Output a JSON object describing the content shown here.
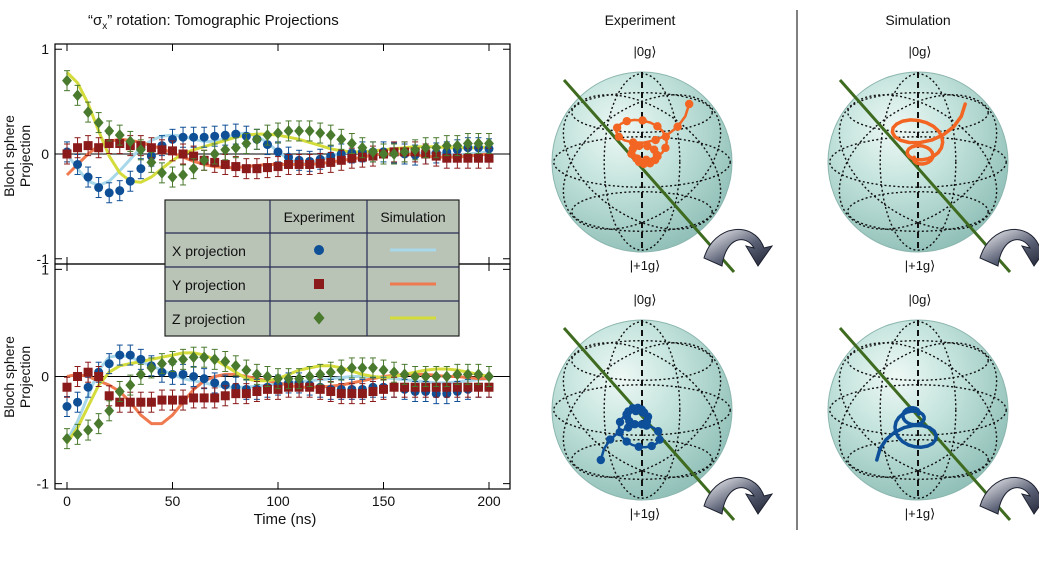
{
  "figure_title": "“σx” rotation: Tomographic Projections",
  "chart_data": [
    {
      "type": "line",
      "panel": "top",
      "ylabel": "Bloch sphere Projection",
      "ylim": [
        -1.05,
        1.05
      ],
      "xlim": [
        0,
        205
      ],
      "yticks": [
        "1",
        "0",
        "-1"
      ],
      "x": [
        0,
        5,
        10,
        15,
        20,
        25,
        30,
        35,
        40,
        45,
        50,
        55,
        60,
        65,
        70,
        75,
        80,
        85,
        90,
        95,
        100,
        105,
        110,
        115,
        120,
        125,
        130,
        135,
        140,
        145,
        150,
        155,
        160,
        165,
        170,
        175,
        180,
        185,
        190,
        195,
        200
      ],
      "series": [
        {
          "name": "X projection",
          "marker": "circle",
          "color": "#0f4f96",
          "fit_color": "#a8d8ea",
          "values": [
            0.02,
            -0.1,
            -0.22,
            -0.32,
            -0.37,
            -0.35,
            -0.26,
            -0.14,
            -0.02,
            0.08,
            0.14,
            0.16,
            0.16,
            0.16,
            0.17,
            0.18,
            0.19,
            0.17,
            0.14,
            0.09,
            0.02,
            -0.03,
            -0.06,
            -0.07,
            -0.05,
            -0.02,
            0.0,
            0.01,
            0.02,
            0.02,
            0.02,
            0.01,
            0.0,
            -0.01,
            0.0,
            0.01,
            0.02,
            0.04,
            0.06,
            0.06,
            0.05
          ],
          "fit": [
            0.0,
            -0.14,
            -0.26,
            -0.3,
            -0.26,
            -0.16,
            -0.05,
            0.06,
            0.13,
            0.17,
            0.18,
            0.17,
            0.14,
            0.12,
            0.12,
            0.15,
            0.19,
            0.2,
            0.17,
            0.11,
            0.02,
            -0.05,
            -0.09,
            -0.09,
            -0.06,
            -0.02,
            0.01,
            0.02,
            0.01,
            0.0,
            -0.01,
            -0.01,
            0.0,
            0.01,
            0.01,
            0.01,
            0.0,
            -0.01,
            0.0,
            0.01,
            0.02
          ]
        },
        {
          "name": "Y projection",
          "marker": "square",
          "color": "#8b1a1a",
          "fit_color": "#f07a50",
          "values": [
            0.0,
            0.06,
            0.08,
            0.06,
            0.1,
            0.1,
            0.08,
            0.08,
            0.06,
            0.04,
            0.03,
            0.0,
            -0.02,
            -0.06,
            -0.08,
            -0.1,
            -0.12,
            -0.14,
            -0.14,
            -0.13,
            -0.12,
            -0.1,
            -0.1,
            -0.1,
            -0.09,
            -0.08,
            -0.06,
            -0.04,
            -0.03,
            -0.02,
            0.0,
            0.02,
            0.02,
            0.02,
            0.0,
            -0.02,
            -0.04,
            -0.04,
            -0.04,
            -0.04,
            -0.04
          ],
          "fit": [
            -0.2,
            -0.1,
            0.0,
            0.08,
            0.12,
            0.14,
            0.13,
            0.11,
            0.08,
            0.05,
            0.01,
            -0.03,
            -0.07,
            -0.1,
            -0.12,
            -0.13,
            -0.13,
            -0.12,
            -0.11,
            -0.1,
            -0.1,
            -0.1,
            -0.1,
            -0.1,
            -0.09,
            -0.08,
            -0.06,
            -0.05,
            -0.03,
            -0.01,
            0.0,
            0.0,
            0.0,
            -0.01,
            -0.02,
            -0.03,
            -0.03,
            -0.03,
            -0.02,
            -0.01,
            0.0
          ]
        },
        {
          "name": "Z projection",
          "marker": "diamond",
          "color": "#4a7a2e",
          "fit_color": "#d4dc3c",
          "values": [
            0.7,
            0.56,
            0.4,
            0.3,
            0.22,
            0.18,
            0.12,
            0.04,
            -0.08,
            -0.18,
            -0.22,
            -0.2,
            -0.14,
            -0.06,
            0.0,
            0.04,
            0.06,
            0.1,
            0.14,
            0.18,
            0.2,
            0.22,
            0.22,
            0.22,
            0.2,
            0.18,
            0.14,
            0.1,
            0.06,
            0.02,
            0.0,
            0.0,
            0.02,
            0.04,
            0.06,
            0.06,
            0.08,
            0.08,
            0.1,
            0.1,
            0.1
          ],
          "fit": [
            0.78,
            0.68,
            0.48,
            0.22,
            -0.02,
            -0.18,
            -0.26,
            -0.27,
            -0.22,
            -0.14,
            -0.06,
            0.0,
            0.04,
            0.07,
            0.1,
            0.13,
            0.16,
            0.18,
            0.19,
            0.19,
            0.18,
            0.16,
            0.14,
            0.11,
            0.08,
            0.05,
            0.03,
            0.02,
            0.02,
            0.03,
            0.04,
            0.05,
            0.06,
            0.07,
            0.07,
            0.07,
            0.06,
            0.06,
            0.06,
            0.06,
            0.07
          ]
        }
      ]
    },
    {
      "type": "line",
      "panel": "bottom",
      "xlabel": "Time (ns)",
      "ylabel": "Bloch sphere Projection",
      "ylim": [
        -1.05,
        1.05
      ],
      "xlim": [
        0,
        205
      ],
      "yticks": [
        "1",
        "0",
        "-1"
      ],
      "xticks": [
        "0",
        "50",
        "100",
        "150",
        "200"
      ],
      "x": [
        0,
        5,
        10,
        15,
        20,
        25,
        30,
        35,
        40,
        45,
        50,
        55,
        60,
        65,
        70,
        75,
        80,
        85,
        90,
        95,
        100,
        105,
        110,
        115,
        120,
        125,
        130,
        135,
        140,
        145,
        150,
        155,
        160,
        165,
        170,
        175,
        180,
        185,
        190,
        195,
        200
      ],
      "series": [
        {
          "name": "X projection",
          "marker": "circle",
          "color": "#0f4f96",
          "fit_color": "#a8d8ea",
          "values": [
            -0.28,
            -0.24,
            -0.1,
            0.04,
            0.12,
            0.2,
            0.2,
            0.16,
            0.1,
            0.04,
            0.02,
            0.02,
            0.0,
            -0.02,
            -0.06,
            -0.08,
            -0.1,
            -0.12,
            -0.12,
            -0.1,
            -0.08,
            -0.06,
            -0.06,
            -0.08,
            -0.1,
            -0.12,
            -0.12,
            -0.12,
            -0.12,
            -0.1,
            -0.1,
            -0.1,
            -0.12,
            -0.14,
            -0.14,
            -0.16,
            -0.16,
            -0.14,
            -0.12,
            -0.1,
            -0.1
          ],
          "fit": [
            -0.6,
            -0.42,
            -0.18,
            0.06,
            0.18,
            0.2,
            0.18,
            0.14,
            0.1,
            0.06,
            0.02,
            -0.02,
            -0.04,
            -0.06,
            -0.08,
            -0.1,
            -0.1,
            -0.1,
            -0.09,
            -0.08,
            -0.07,
            -0.06,
            -0.05,
            -0.04,
            -0.03,
            -0.02,
            -0.01,
            0.0,
            0.0,
            0.0,
            -0.01,
            -0.02,
            -0.03,
            -0.04,
            -0.05,
            -0.06,
            -0.06,
            -0.05,
            -0.04,
            -0.03,
            -0.02
          ]
        },
        {
          "name": "Y projection",
          "marker": "square",
          "color": "#8b1a1a",
          "fit_color": "#f07a50",
          "values": [
            -0.1,
            0.0,
            0.04,
            0.0,
            -0.18,
            -0.24,
            -0.24,
            -0.24,
            -0.24,
            -0.22,
            -0.22,
            -0.22,
            -0.2,
            -0.2,
            -0.2,
            -0.18,
            -0.16,
            -0.16,
            -0.14,
            -0.12,
            -0.12,
            -0.1,
            -0.1,
            -0.1,
            -0.12,
            -0.14,
            -0.16,
            -0.16,
            -0.16,
            -0.14,
            -0.12,
            -0.1,
            -0.1,
            -0.1,
            -0.1,
            -0.1,
            -0.1,
            -0.1,
            -0.1,
            -0.1,
            -0.1
          ],
          "fit": [
            0.0,
            0.02,
            0.0,
            -0.04,
            -0.08,
            -0.14,
            -0.24,
            -0.36,
            -0.44,
            -0.44,
            -0.36,
            -0.24,
            -0.12,
            -0.04,
            0.0,
            0.02,
            0.02,
            0.0,
            -0.02,
            -0.04,
            -0.06,
            -0.08,
            -0.1,
            -0.1,
            -0.1,
            -0.09,
            -0.08,
            -0.06,
            -0.04,
            -0.02,
            0.0,
            0.01,
            0.02,
            0.02,
            0.02,
            0.01,
            0.0,
            0.0,
            -0.01,
            -0.02,
            -0.02
          ]
        },
        {
          "name": "Z projection",
          "marker": "diamond",
          "color": "#4a7a2e",
          "fit_color": "#d4dc3c",
          "values": [
            -0.58,
            -0.54,
            -0.5,
            -0.44,
            -0.32,
            -0.14,
            -0.08,
            0.02,
            0.08,
            0.12,
            0.14,
            0.16,
            0.18,
            0.18,
            0.16,
            0.14,
            0.1,
            0.06,
            0.02,
            0.0,
            -0.02,
            -0.02,
            -0.02,
            0.0,
            0.02,
            0.04,
            0.06,
            0.08,
            0.08,
            0.08,
            0.06,
            0.04,
            0.02,
            0.0,
            0.0,
            0.0,
            0.0,
            0.02,
            0.02,
            0.02,
            0.0
          ],
          "fit": [
            -0.62,
            -0.48,
            -0.28,
            -0.08,
            0.04,
            0.1,
            0.12,
            0.14,
            0.16,
            0.18,
            0.2,
            0.22,
            0.22,
            0.2,
            0.16,
            0.1,
            0.04,
            -0.02,
            -0.04,
            -0.04,
            -0.02,
            0.02,
            0.06,
            0.08,
            0.1,
            0.1,
            0.08,
            0.05,
            0.02,
            0.0,
            -0.01,
            0.0,
            0.02,
            0.04,
            0.06,
            0.07,
            0.07,
            0.06,
            0.04,
            0.02,
            0.0
          ]
        }
      ]
    }
  ],
  "legend": {
    "col_experiment": "Experiment",
    "col_simulation": "Simulation",
    "rows": [
      {
        "label": "X projection",
        "marker": "circle",
        "color": "#0f4f96",
        "fit_color": "#a8d8ea"
      },
      {
        "label": "Y projection",
        "marker": "square",
        "color": "#8b1a1a",
        "fit_color": "#f07a50"
      },
      {
        "label": "Z projection",
        "marker": "diamond",
        "color": "#4a7a2e",
        "fit_color": "#d4dc3c"
      }
    ]
  },
  "bloch": {
    "col_experiment": "Experiment",
    "col_simulation": "Simulation",
    "state_top": "|0g⟩",
    "state_bottom": "|+1g⟩",
    "spheres": [
      {
        "id": "exp-top",
        "column": "Experiment",
        "row": "top",
        "style": "dots",
        "color": "#f26522"
      },
      {
        "id": "sim-top",
        "column": "Simulation",
        "row": "top",
        "style": "curve",
        "color": "#f26522"
      },
      {
        "id": "exp-bottom",
        "column": "Experiment",
        "row": "bottom",
        "style": "dots",
        "color": "#0e4f9a"
      },
      {
        "id": "sim-bottom",
        "column": "Simulation",
        "row": "bottom",
        "style": "curve",
        "color": "#0e4f9a"
      }
    ]
  }
}
